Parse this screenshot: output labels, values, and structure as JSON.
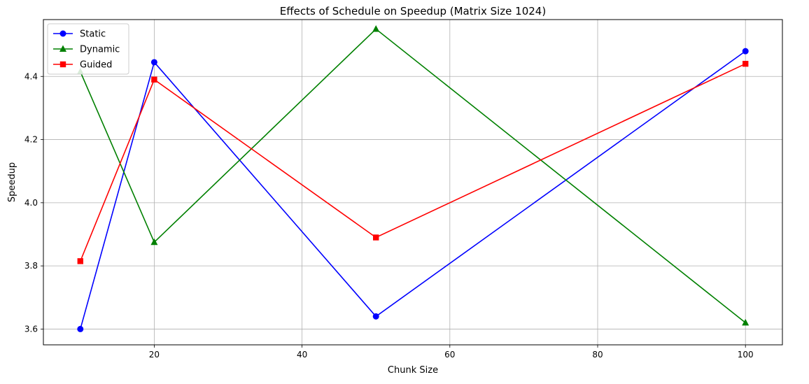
{
  "chart_data": {
    "type": "line",
    "title": "Effects of Schedule on Speedup (Matrix Size 1024)",
    "xlabel": "Chunk Size",
    "ylabel": "Speedup",
    "x": [
      10,
      20,
      50,
      100
    ],
    "xlim": [
      5,
      105
    ],
    "ylim": [
      3.55,
      4.58
    ],
    "xticks": [
      20,
      40,
      60,
      80,
      100
    ],
    "yticks": [
      3.6,
      3.8,
      4.0,
      4.2,
      4.4
    ],
    "xtick_labels": [
      "20",
      "40",
      "60",
      "80",
      "100"
    ],
    "ytick_labels": [
      "3.6",
      "3.8",
      "4.0",
      "4.2",
      "4.4"
    ],
    "grid": true,
    "legend_position": "top-left",
    "series": [
      {
        "name": "Static",
        "values": [
          3.6,
          4.445,
          3.64,
          4.48
        ],
        "color": "#0000ff",
        "marker": "circle"
      },
      {
        "name": "Dynamic",
        "values": [
          4.415,
          3.875,
          4.55,
          3.62
        ],
        "color": "#008000",
        "marker": "triangle"
      },
      {
        "name": "Guided",
        "values": [
          3.815,
          4.39,
          3.89,
          4.44
        ],
        "color": "#ff0000",
        "marker": "square"
      }
    ]
  }
}
